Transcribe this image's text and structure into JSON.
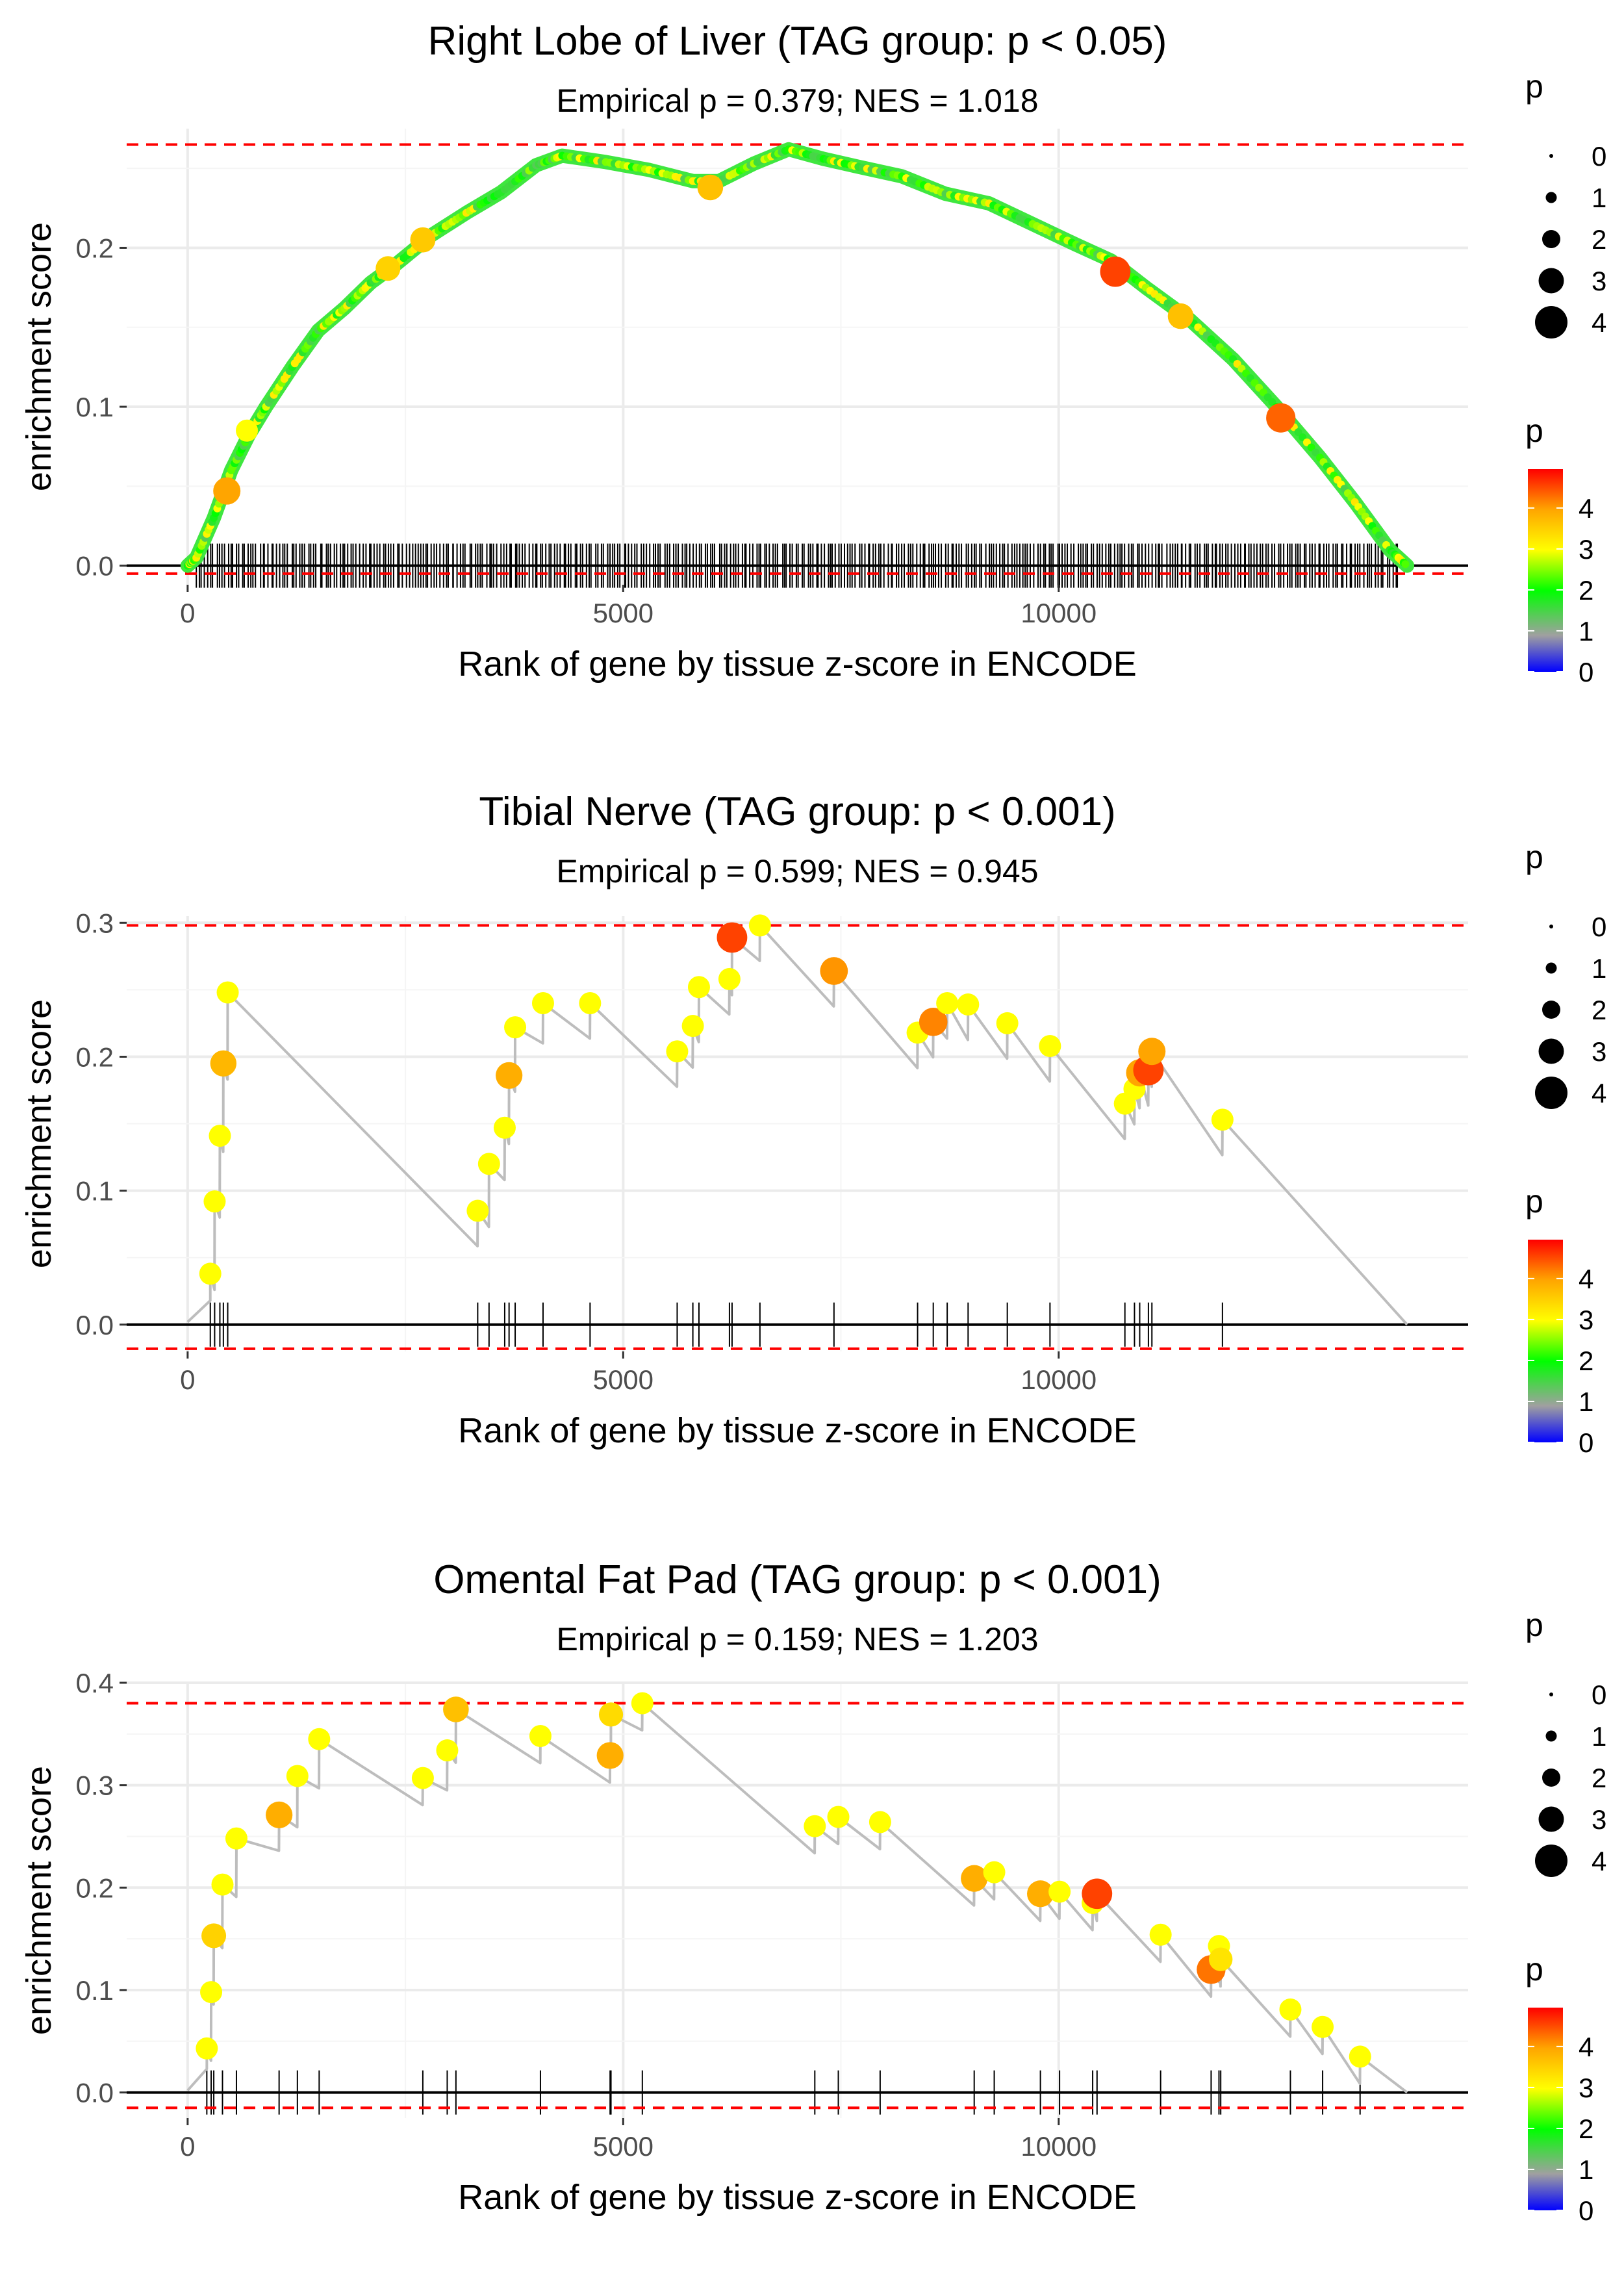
{
  "chart_data": [
    {
      "type": "line",
      "title": "Right Lobe of Liver (TAG group: p < 0.05)",
      "subtitle": "Empirical p = 0.379; NES = 1.018",
      "xlabel": "Rank of gene by tissue z-score in ENCODE",
      "ylabel": "enrichment score",
      "xlim": [
        -700,
        14700
      ],
      "ylim": [
        -0.012,
        0.275
      ],
      "xticks": [
        0,
        5000,
        10000
      ],
      "xtick_labels": [
        "0",
        "5000",
        "10000"
      ],
      "yticks": [
        0.0,
        0.1,
        0.2
      ],
      "ytick_labels": [
        "0.0",
        "0.1",
        "0.2"
      ],
      "max_line": 0.265,
      "min_line": -0.005,
      "dense_curve": true,
      "curve": [
        [
          0,
          0
        ],
        [
          100,
          0.005
        ],
        [
          300,
          0.03
        ],
        [
          500,
          0.06
        ],
        [
          700,
          0.082
        ],
        [
          900,
          0.1
        ],
        [
          1200,
          0.125
        ],
        [
          1500,
          0.148
        ],
        [
          1800,
          0.162
        ],
        [
          2100,
          0.178
        ],
        [
          2400,
          0.19
        ],
        [
          2800,
          0.208
        ],
        [
          3200,
          0.222
        ],
        [
          3600,
          0.235
        ],
        [
          4000,
          0.252
        ],
        [
          4300,
          0.258
        ],
        [
          4800,
          0.254
        ],
        [
          5300,
          0.249
        ],
        [
          5800,
          0.242
        ],
        [
          6100,
          0.242
        ],
        [
          6500,
          0.253
        ],
        [
          6900,
          0.262
        ],
        [
          7300,
          0.256
        ],
        [
          7700,
          0.251
        ],
        [
          8200,
          0.245
        ],
        [
          8700,
          0.234
        ],
        [
          9200,
          0.228
        ],
        [
          9700,
          0.215
        ],
        [
          10200,
          0.202
        ],
        [
          10600,
          0.192
        ],
        [
          11000,
          0.175
        ],
        [
          11500,
          0.155
        ],
        [
          12000,
          0.13
        ],
        [
          12500,
          0.1
        ],
        [
          13000,
          0.068
        ],
        [
          13400,
          0.04
        ],
        [
          13800,
          0.01
        ],
        [
          14000,
          0
        ]
      ],
      "highlights": [
        [
          450,
          0.047,
          4.0
        ],
        [
          680,
          0.085,
          3.0
        ],
        [
          2300,
          0.187,
          3.5
        ],
        [
          2700,
          0.205,
          3.6
        ],
        [
          6000,
          0.238,
          3.7
        ],
        [
          10650,
          0.185,
          4.6
        ],
        [
          11400,
          0.157,
          3.7
        ],
        [
          12550,
          0.093,
          4.4
        ]
      ],
      "ticks": {
        "from": 100,
        "to": 13900,
        "count": 420
      },
      "legend": {
        "size_title": "p",
        "size_labels": [
          "0",
          "1",
          "2",
          "3",
          "4"
        ],
        "color_title": "p",
        "color_labels": [
          "4",
          "3",
          "2",
          "1",
          "0"
        ]
      }
    },
    {
      "type": "line",
      "title": "Tibial Nerve (TAG group: p < 0.001)",
      "subtitle": "Empirical p = 0.599; NES = 0.945",
      "xlabel": "Rank of gene by tissue z-score in ENCODE",
      "ylabel": "enrichment score",
      "xlim": [
        -700,
        14700
      ],
      "ylim": [
        -0.02,
        0.305
      ],
      "xticks": [
        0,
        5000,
        10000
      ],
      "xtick_labels": [
        "0",
        "5000",
        "10000"
      ],
      "yticks": [
        0.0,
        0.1,
        0.2,
        0.3
      ],
      "ytick_labels": [
        "0.0",
        "0.1",
        "0.2",
        "0.3"
      ],
      "max_line": 0.298,
      "min_line": -0.018,
      "dense_curve": false,
      "hits": [
        [
          260,
          0.038,
          3.0
        ],
        [
          310,
          0.092,
          3.0
        ],
        [
          370,
          0.141,
          3.0
        ],
        [
          410,
          0.195,
          3.8
        ],
        [
          460,
          0.248,
          3.0
        ],
        [
          3330,
          0.085,
          3.0
        ],
        [
          3460,
          0.12,
          3.0
        ],
        [
          3640,
          0.147,
          3.0
        ],
        [
          3690,
          0.186,
          3.9
        ],
        [
          3760,
          0.222,
          3.0
        ],
        [
          4080,
          0.24,
          3.0
        ],
        [
          4620,
          0.24,
          3.0
        ],
        [
          5620,
          0.204,
          3.0
        ],
        [
          5800,
          0.223,
          3.0
        ],
        [
          5870,
          0.252,
          3.0
        ],
        [
          6220,
          0.258,
          3.0
        ],
        [
          6250,
          0.289,
          4.6
        ],
        [
          6570,
          0.298,
          3.0
        ],
        [
          7420,
          0.264,
          4.1
        ],
        [
          8380,
          0.218,
          3.0
        ],
        [
          8560,
          0.226,
          4.2
        ],
        [
          8720,
          0.24,
          3.0
        ],
        [
          8960,
          0.239,
          3.0
        ],
        [
          9410,
          0.225,
          3.0
        ],
        [
          9900,
          0.208,
          3.0
        ],
        [
          10760,
          0.165,
          3.0
        ],
        [
          10870,
          0.176,
          3.0
        ],
        [
          10930,
          0.188,
          4.0
        ],
        [
          11030,
          0.19,
          4.6
        ],
        [
          11070,
          0.204,
          4.0
        ],
        [
          11880,
          0.153,
          3.0
        ]
      ],
      "end": [
        14000,
        0
      ],
      "legend": {
        "size_title": "p",
        "size_labels": [
          "0",
          "1",
          "2",
          "3",
          "4"
        ],
        "color_title": "p",
        "color_labels": [
          "4",
          "3",
          "2",
          "1",
          "0"
        ]
      }
    },
    {
      "type": "line",
      "title": "Omental Fat Pad (TAG group: p < 0.001)",
      "subtitle": "Empirical p = 0.159; NES = 1.203",
      "xlabel": "Rank of gene by tissue z-score in ENCODE",
      "ylabel": "enrichment score",
      "xlim": [
        -700,
        14700
      ],
      "ylim": [
        -0.025,
        0.4
      ],
      "xticks": [
        0,
        5000,
        10000
      ],
      "xtick_labels": [
        "0",
        "5000",
        "10000"
      ],
      "yticks": [
        0.0,
        0.1,
        0.2,
        0.3,
        0.4
      ],
      "ytick_labels": [
        "0.0",
        "0.1",
        "0.2",
        "0.3",
        "0.4"
      ],
      "max_line": 0.38,
      "min_line": -0.015,
      "dense_curve": false,
      "hits": [
        [
          220,
          0.043,
          3.0
        ],
        [
          270,
          0.098,
          3.0
        ],
        [
          300,
          0.153,
          3.5
        ],
        [
          400,
          0.203,
          3.0
        ],
        [
          560,
          0.248,
          3.0
        ],
        [
          1050,
          0.271,
          3.9
        ],
        [
          1260,
          0.309,
          3.0
        ],
        [
          1510,
          0.345,
          3.0
        ],
        [
          2700,
          0.307,
          3.0
        ],
        [
          2980,
          0.334,
          3.0
        ],
        [
          3080,
          0.374,
          3.7
        ],
        [
          4050,
          0.348,
          3.0
        ],
        [
          4850,
          0.329,
          3.9
        ],
        [
          4860,
          0.369,
          3.4
        ],
        [
          5220,
          0.38,
          3.0
        ],
        [
          7200,
          0.26,
          3.0
        ],
        [
          7470,
          0.269,
          3.0
        ],
        [
          7950,
          0.264,
          3.0
        ],
        [
          9030,
          0.209,
          3.9
        ],
        [
          9260,
          0.215,
          3.0
        ],
        [
          9790,
          0.194,
          3.9
        ],
        [
          10010,
          0.196,
          3.0
        ],
        [
          10390,
          0.185,
          3.0
        ],
        [
          10440,
          0.194,
          4.6
        ],
        [
          11170,
          0.154,
          3.0
        ],
        [
          11750,
          0.12,
          4.3
        ],
        [
          11840,
          0.143,
          3.0
        ],
        [
          11860,
          0.13,
          3.3
        ],
        [
          12660,
          0.081,
          3.0
        ],
        [
          13030,
          0.064,
          3.0
        ],
        [
          13460,
          0.035,
          3.0
        ]
      ],
      "end": [
        14000,
        0
      ],
      "legend": {
        "size_title": "p",
        "size_labels": [
          "0",
          "1",
          "2",
          "3",
          "4"
        ],
        "color_title": "p",
        "color_labels": [
          "4",
          "3",
          "2",
          "1",
          "0"
        ]
      }
    }
  ]
}
